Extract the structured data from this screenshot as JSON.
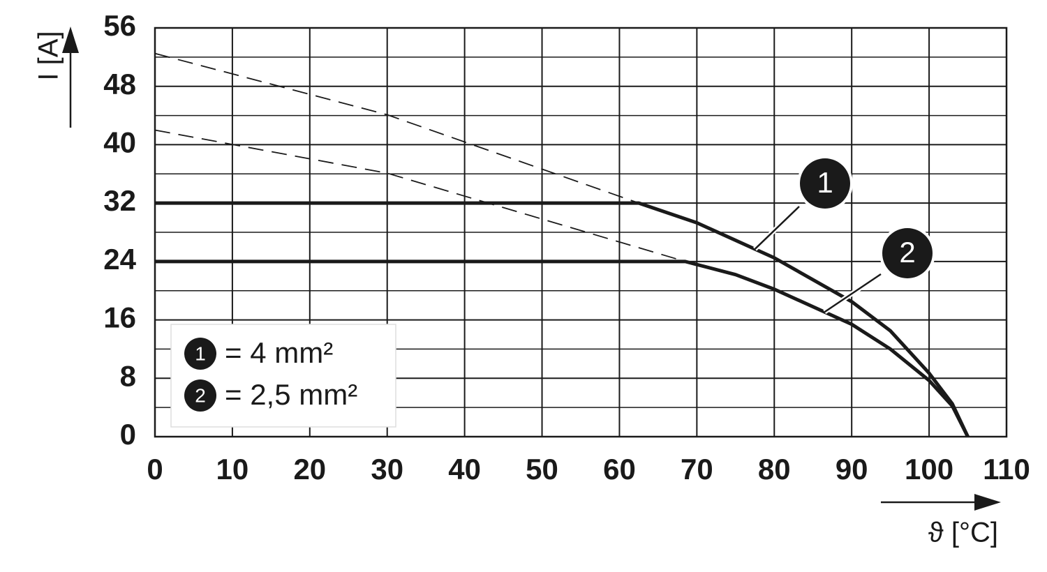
{
  "chart_data": {
    "type": "line",
    "ylabel": "I [A]",
    "xlabel": "ϑ [°C]",
    "xlim": [
      0,
      110
    ],
    "xticks": [
      0,
      10,
      20,
      30,
      40,
      50,
      60,
      70,
      80,
      90,
      100,
      110
    ],
    "ylim": [
      0,
      56
    ],
    "yticks": [
      0,
      8,
      16,
      24,
      32,
      40,
      48,
      56
    ],
    "minor_yticks": [
      4,
      12,
      20,
      28,
      36,
      44,
      52
    ],
    "grid": true,
    "legend": "lower left",
    "series": [
      {
        "name": "= 4 mm²",
        "marker": "1",
        "color": "#1a1a1a",
        "x": [
          0,
          62.5,
          70,
          80,
          90,
          95,
          100,
          103,
          105
        ],
        "values": [
          32,
          32,
          29.3,
          24.5,
          18.5,
          14.5,
          8.7,
          4.5,
          0
        ],
        "extrapolation_x": [
          0,
          30,
          62.5
        ],
        "extrapolation_values": [
          52.5,
          44.1,
          32
        ]
      },
      {
        "name": "= 2,5 mm²",
        "marker": "2",
        "color": "#1a1a1a",
        "x": [
          0,
          68.5,
          75,
          80,
          90,
          95,
          100,
          103,
          105
        ],
        "values": [
          24,
          24,
          22.2,
          20.2,
          15.4,
          12,
          7.7,
          4.2,
          0
        ],
        "extrapolation_x": [
          0,
          30,
          68.5
        ],
        "extrapolation_values": [
          42,
          36.1,
          24
        ]
      }
    ]
  }
}
